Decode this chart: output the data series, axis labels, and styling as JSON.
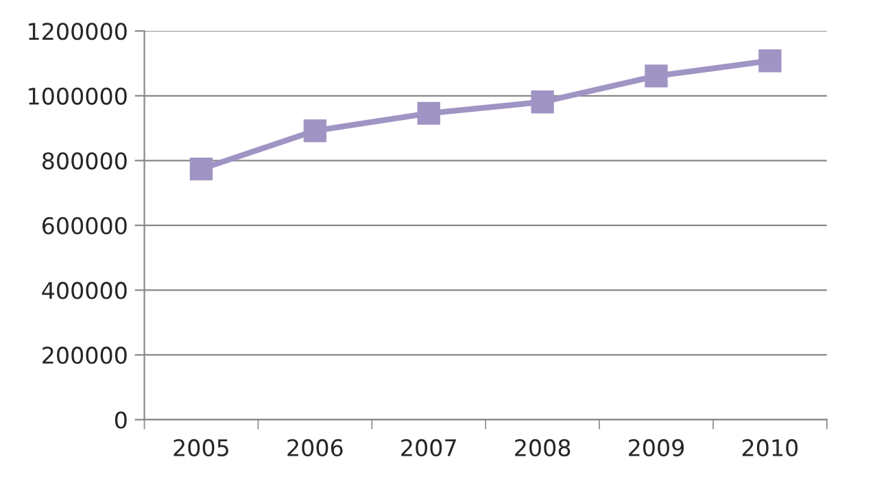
{
  "chart_data": {
    "type": "line",
    "categories": [
      "2005",
      "2006",
      "2007",
      "2008",
      "2009",
      "2010"
    ],
    "series": [
      {
        "color": "#a094c4",
        "values": [
          774000,
          892000,
          946000,
          981000,
          1061000,
          1108000
        ]
      }
    ],
    "ylim": [
      0,
      1200000
    ],
    "yticks": [
      0,
      200000,
      400000,
      600000,
      800000,
      1000000,
      1200000
    ],
    "grid": "y",
    "marker": "square",
    "line_style": "solid"
  }
}
